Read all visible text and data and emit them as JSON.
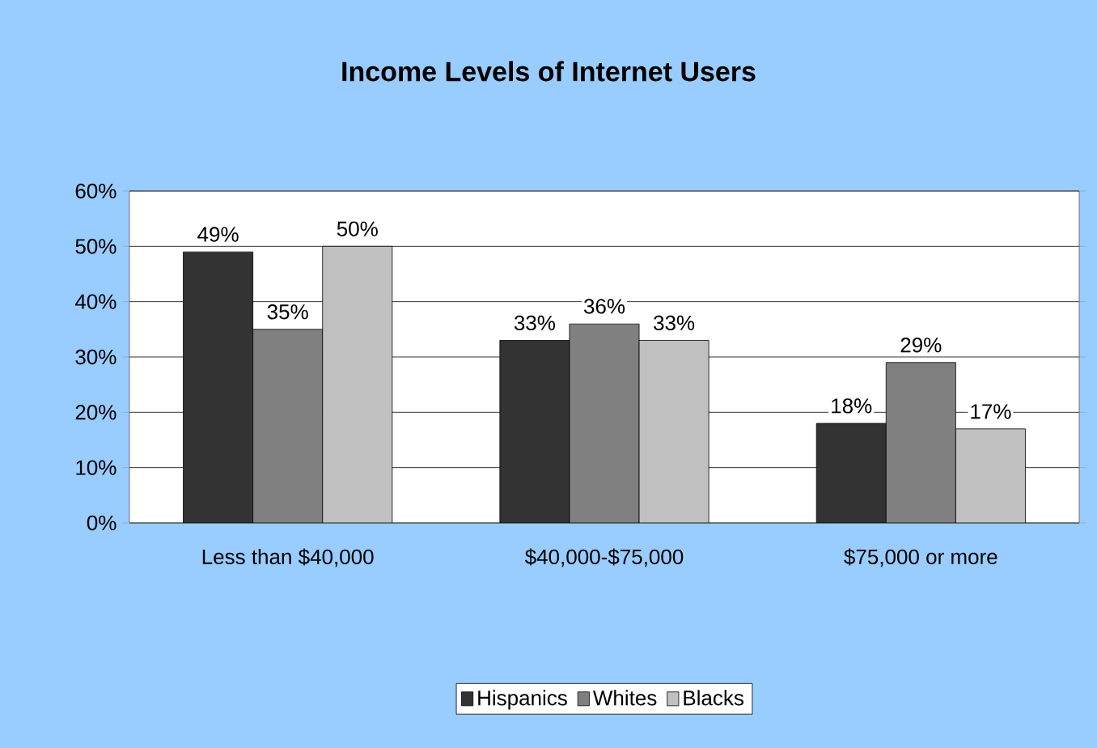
{
  "chart_data": {
    "type": "bar",
    "title": "Income Levels of Internet Users",
    "categories": [
      "Less than $40,000",
      "$40,000-$75,000",
      "$75,000 or more"
    ],
    "series": [
      {
        "name": "Hispanics",
        "color": "#333333",
        "values": [
          49,
          33,
          18
        ],
        "value_labels": [
          "49%",
          "33%",
          "18%"
        ]
      },
      {
        "name": "Whites",
        "color": "#808080",
        "values": [
          35,
          36,
          29
        ],
        "value_labels": [
          "35%",
          "36%",
          "29%"
        ]
      },
      {
        "name": "Blacks",
        "color": "#c0c0c0",
        "values": [
          50,
          33,
          17
        ],
        "value_labels": [
          "50%",
          "33%",
          "17%"
        ]
      }
    ],
    "ylim": [
      0,
      60
    ],
    "yticks": [
      {
        "value": 0,
        "label": "0%"
      },
      {
        "value": 10,
        "label": "10%"
      },
      {
        "value": 20,
        "label": "20%"
      },
      {
        "value": 30,
        "label": "30%"
      },
      {
        "value": 40,
        "label": "40%"
      },
      {
        "value": 50,
        "label": "50%"
      },
      {
        "value": 60,
        "label": "60%"
      }
    ],
    "grid": "y",
    "legend": "bottom"
  }
}
